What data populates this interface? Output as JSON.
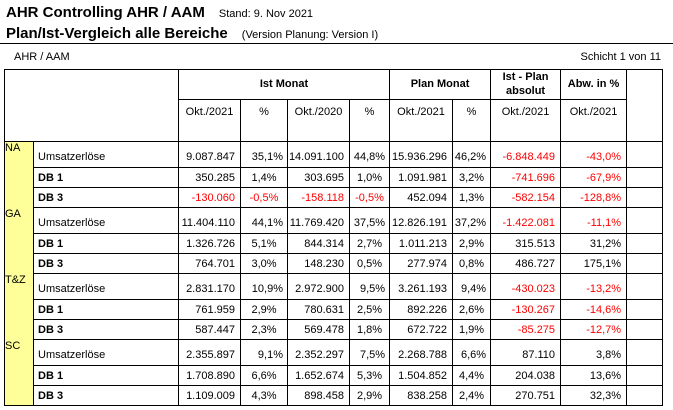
{
  "header": {
    "title": "AHR Controlling AHR / AAM",
    "stand": "Stand: 9. Nov 2021",
    "subtitle": "Plan/Ist-Vergleich alle Bereiche",
    "version_note": "(Version Planung: Version I)",
    "scope": "AHR / AAM",
    "page_indicator": "Schicht 1 von 11"
  },
  "colors": {
    "section_label_bg": "#ffff99",
    "group_header_bg": "#c0c0c0",
    "negative_value": "#ff0000",
    "grid_border": "#000000"
  },
  "table": {
    "column_groups": [
      {
        "label": "Ist Monat"
      },
      {
        "label": "Plan Monat"
      },
      {
        "label": "Ist - Plan absolut"
      },
      {
        "label": "Abw. in %"
      }
    ],
    "subheaders": [
      {
        "label": "Okt./2021"
      },
      {
        "label": "%"
      },
      {
        "label": "Okt./2020"
      },
      {
        "label": "%"
      },
      {
        "label": "Okt./2021"
      },
      {
        "label": "%"
      },
      {
        "label": "Okt./2021"
      },
      {
        "label": "Okt./2021"
      }
    ],
    "sections": [
      {
        "label": "NA",
        "rows": [
          {
            "label": "Umsatzerlöse",
            "bold": false,
            "cells": [
              {
                "v": "9.087.847"
              },
              {
                "v": "35,1%",
                "sm": true
              },
              {
                "v": "14.091.100"
              },
              {
                "v": "44,8%",
                "sm": true
              },
              {
                "v": "15.936.296"
              },
              {
                "v": "46,2%",
                "sm": true
              },
              {
                "v": "-6.848.449",
                "neg": true
              },
              {
                "v": "-43,0%",
                "neg": true
              }
            ]
          },
          {
            "label": "DB 1",
            "bold": true,
            "cells": [
              {
                "v": "350.285"
              },
              {
                "v": "1,4%",
                "bp": true
              },
              {
                "v": "303.695"
              },
              {
                "v": "1,0%",
                "bp": true
              },
              {
                "v": "1.091.981"
              },
              {
                "v": "3,2%",
                "bp": true
              },
              {
                "v": "-741.696",
                "neg": true
              },
              {
                "v": "-67,9%",
                "neg": true
              }
            ]
          },
          {
            "label": "DB 3",
            "bold": true,
            "cells": [
              {
                "v": "-130.060",
                "neg": true
              },
              {
                "v": "-0,5%",
                "bp": true,
                "neg": true
              },
              {
                "v": "-158.118",
                "neg": true
              },
              {
                "v": "-0,5%",
                "bp": true,
                "neg": true
              },
              {
                "v": "452.094"
              },
              {
                "v": "1,3%",
                "bp": true
              },
              {
                "v": "-582.154",
                "neg": true
              },
              {
                "v": "-128,8%",
                "neg": true
              }
            ]
          }
        ]
      },
      {
        "label": "GA",
        "rows": [
          {
            "label": "Umsatzerlöse",
            "bold": false,
            "cells": [
              {
                "v": "11.404.110"
              },
              {
                "v": "44,1%",
                "sm": true
              },
              {
                "v": "11.769.420"
              },
              {
                "v": "37,5%",
                "sm": true
              },
              {
                "v": "12.826.191"
              },
              {
                "v": "37,2%",
                "sm": true
              },
              {
                "v": "-1.422.081",
                "neg": true
              },
              {
                "v": "-11,1%",
                "neg": true
              }
            ]
          },
          {
            "label": "DB 1",
            "bold": true,
            "cells": [
              {
                "v": "1.326.726"
              },
              {
                "v": "5,1%",
                "bp": true
              },
              {
                "v": "844.314"
              },
              {
                "v": "2,7%",
                "bp": true
              },
              {
                "v": "1.011.213"
              },
              {
                "v": "2,9%",
                "bp": true
              },
              {
                "v": "315.513"
              },
              {
                "v": "31,2%"
              }
            ]
          },
          {
            "label": "DB 3",
            "bold": true,
            "cells": [
              {
                "v": "764.701"
              },
              {
                "v": "3,0%",
                "bp": true
              },
              {
                "v": "148.230"
              },
              {
                "v": "0,5%",
                "bp": true
              },
              {
                "v": "277.974"
              },
              {
                "v": "0,8%",
                "bp": true
              },
              {
                "v": "486.727"
              },
              {
                "v": "175,1%"
              }
            ]
          }
        ]
      },
      {
        "label": "T&Z",
        "rows": [
          {
            "label": "Umsatzerlöse",
            "bold": false,
            "cells": [
              {
                "v": "2.831.170"
              },
              {
                "v": "10,9%",
                "sm": true
              },
              {
                "v": "2.972.900"
              },
              {
                "v": "9,5%",
                "sm": true
              },
              {
                "v": "3.261.193"
              },
              {
                "v": "9,4%",
                "sm": true
              },
              {
                "v": "-430.023",
                "neg": true
              },
              {
                "v": "-13,2%",
                "neg": true
              }
            ]
          },
          {
            "label": "DB 1",
            "bold": true,
            "cells": [
              {
                "v": "761.959"
              },
              {
                "v": "2,9%",
                "bp": true
              },
              {
                "v": "780.631"
              },
              {
                "v": "2,5%",
                "bp": true
              },
              {
                "v": "892.226"
              },
              {
                "v": "2,6%",
                "bp": true
              },
              {
                "v": "-130.267",
                "neg": true
              },
              {
                "v": "-14,6%",
                "neg": true
              }
            ]
          },
          {
            "label": "DB 3",
            "bold": true,
            "cells": [
              {
                "v": "587.447"
              },
              {
                "v": "2,3%",
                "bp": true
              },
              {
                "v": "569.478"
              },
              {
                "v": "1,8%",
                "bp": true
              },
              {
                "v": "672.722"
              },
              {
                "v": "1,9%",
                "bp": true
              },
              {
                "v": "-85.275",
                "neg": true
              },
              {
                "v": "-12,7%",
                "neg": true
              }
            ]
          }
        ]
      },
      {
        "label": "SC",
        "rows": [
          {
            "label": "Umsatzerlöse",
            "bold": false,
            "cells": [
              {
                "v": "2.355.897"
              },
              {
                "v": "9,1%",
                "sm": true
              },
              {
                "v": "2.352.297"
              },
              {
                "v": "7,5%",
                "sm": true
              },
              {
                "v": "2.268.788"
              },
              {
                "v": "6,6%",
                "sm": true
              },
              {
                "v": "87.110"
              },
              {
                "v": "3,8%"
              }
            ]
          },
          {
            "label": "DB 1",
            "bold": true,
            "cells": [
              {
                "v": "1.708.890"
              },
              {
                "v": "6,6%",
                "bp": true
              },
              {
                "v": "1.652.674"
              },
              {
                "v": "5,3%",
                "bp": true
              },
              {
                "v": "1.504.852"
              },
              {
                "v": "4,4%",
                "bp": true
              },
              {
                "v": "204.038"
              },
              {
                "v": "13,6%"
              }
            ]
          },
          {
            "label": "DB 3",
            "bold": true,
            "cells": [
              {
                "v": "1.109.009"
              },
              {
                "v": "4,3%",
                "bp": true
              },
              {
                "v": "898.458"
              },
              {
                "v": "2,9%",
                "bp": true
              },
              {
                "v": "838.258"
              },
              {
                "v": "2,4%",
                "bp": true
              },
              {
                "v": "270.751"
              },
              {
                "v": "32,3%"
              }
            ]
          }
        ]
      }
    ]
  }
}
